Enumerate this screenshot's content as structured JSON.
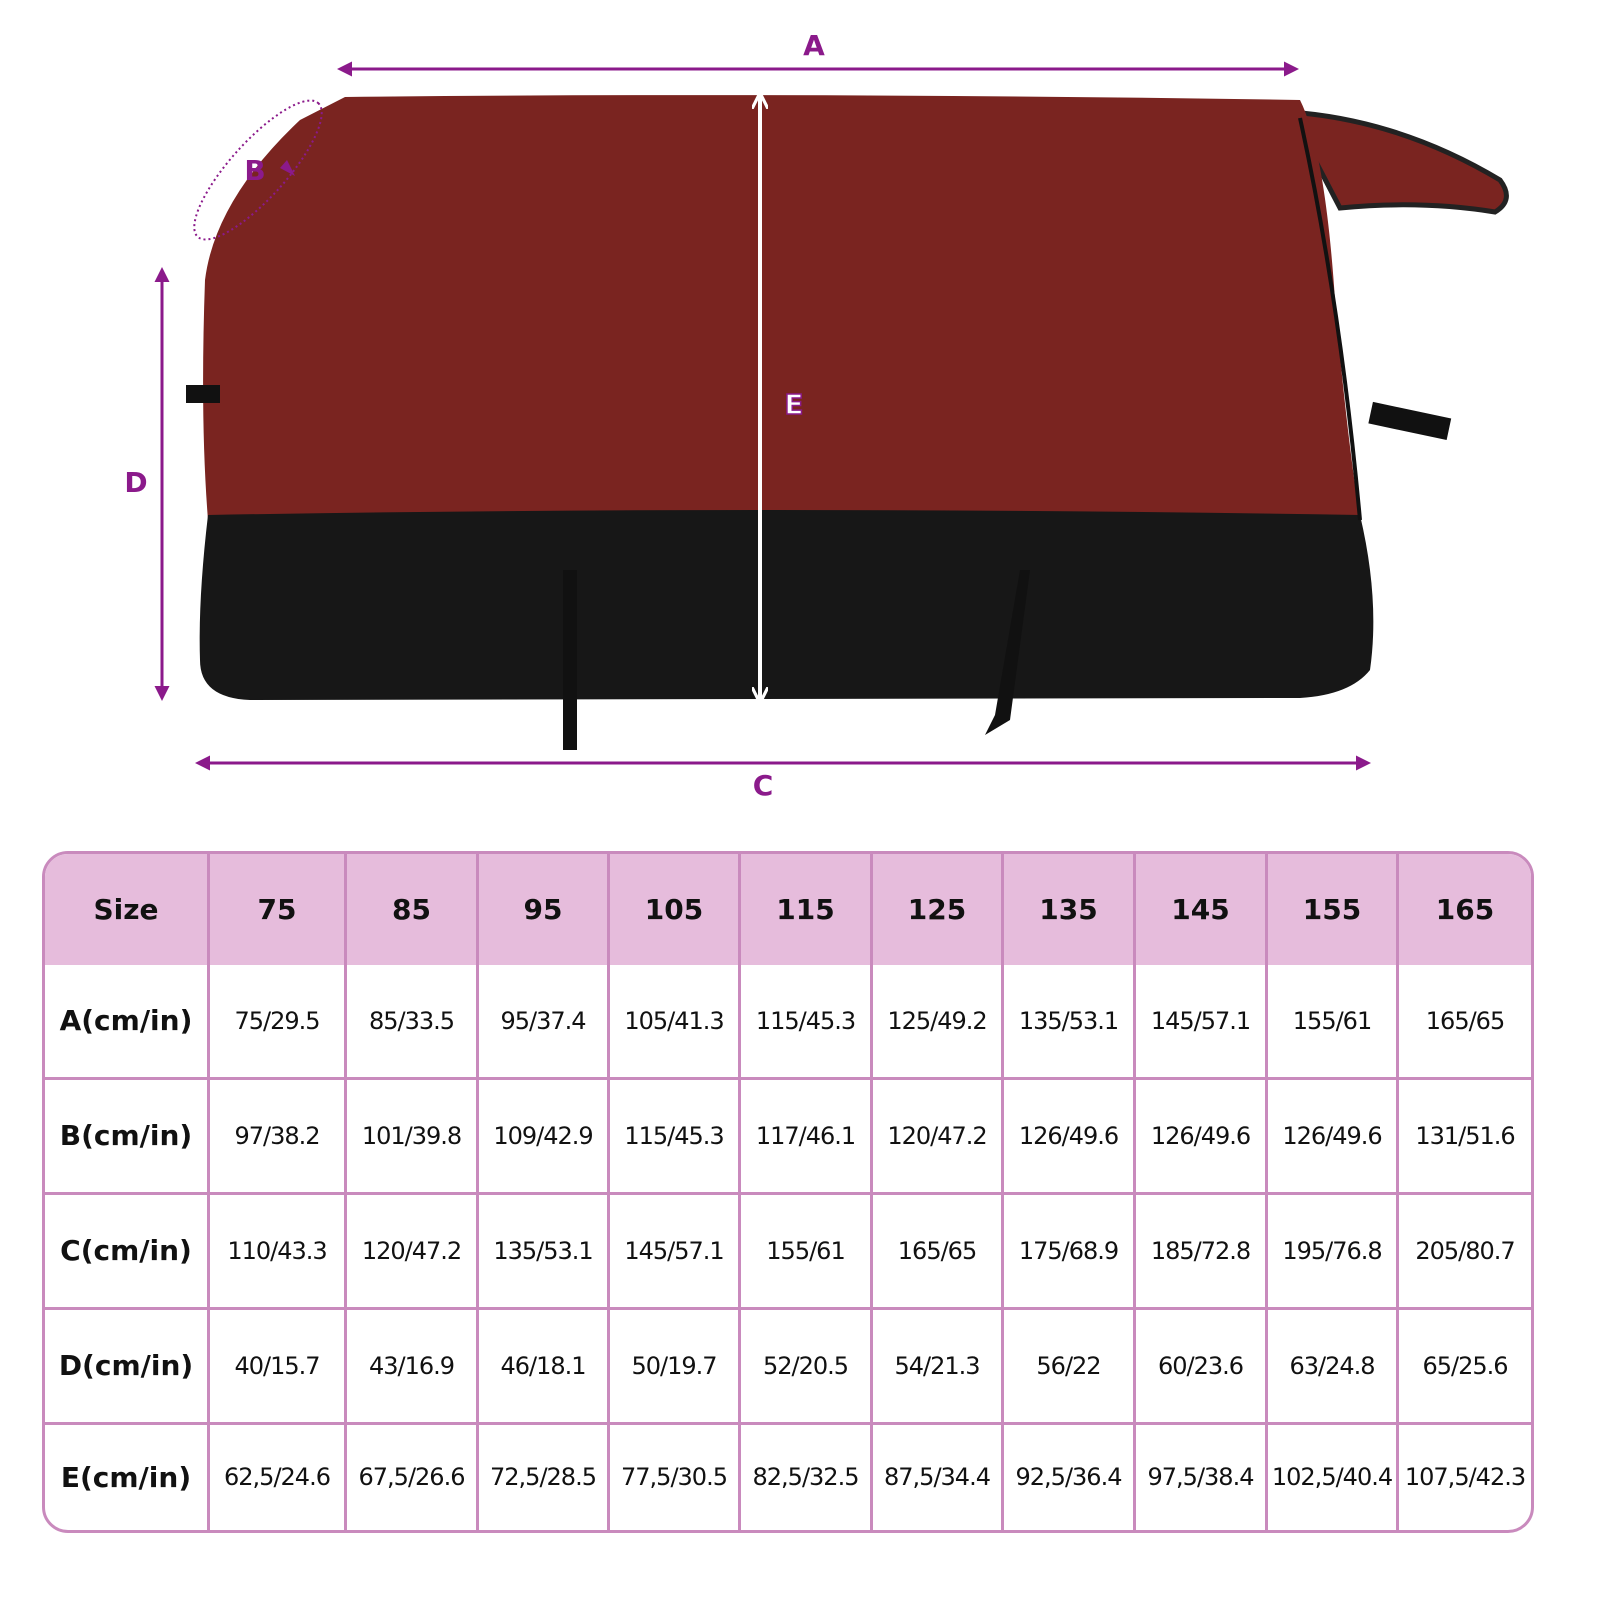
{
  "diagram": {
    "labels": {
      "A": "A",
      "B": "B",
      "C": "C",
      "D": "D",
      "E": "E"
    },
    "colors": {
      "dimension": "#8b1a8b",
      "blanket_top": "#7a2420",
      "blanket_bottom": "#161616",
      "trim": "#111111"
    }
  },
  "table": {
    "colors": {
      "header_bg": "#e6bcdc",
      "border": "#c98abd"
    },
    "header": [
      "Size",
      "75",
      "85",
      "95",
      "105",
      "115",
      "125",
      "135",
      "145",
      "155",
      "165"
    ],
    "rows": [
      {
        "label": "A(cm/in)",
        "values": [
          "75/29.5",
          "85/33.5",
          "95/37.4",
          "105/41.3",
          "115/45.3",
          "125/49.2",
          "135/53.1",
          "145/57.1",
          "155/61",
          "165/65"
        ]
      },
      {
        "label": "B(cm/in)",
        "values": [
          "97/38.2",
          "101/39.8",
          "109/42.9",
          "115/45.3",
          "117/46.1",
          "120/47.2",
          "126/49.6",
          "126/49.6",
          "126/49.6",
          "131/51.6"
        ]
      },
      {
        "label": "C(cm/in)",
        "values": [
          "110/43.3",
          "120/47.2",
          "135/53.1",
          "145/57.1",
          "155/61",
          "165/65",
          "175/68.9",
          "185/72.8",
          "195/76.8",
          "205/80.7"
        ]
      },
      {
        "label": "D(cm/in)",
        "values": [
          "40/15.7",
          "43/16.9",
          "46/18.1",
          "50/19.7",
          "52/20.5",
          "54/21.3",
          "56/22",
          "60/23.6",
          "63/24.8",
          "65/25.6"
        ]
      },
      {
        "label": "E(cm/in)",
        "values": [
          "62,5/24.6",
          "67,5/26.6",
          "72,5/28.5",
          "77,5/30.5",
          "82,5/32.5",
          "87,5/34.4",
          "92,5/36.4",
          "97,5/38.4",
          "102,5/40.4",
          "107,5/42.3"
        ]
      }
    ]
  }
}
